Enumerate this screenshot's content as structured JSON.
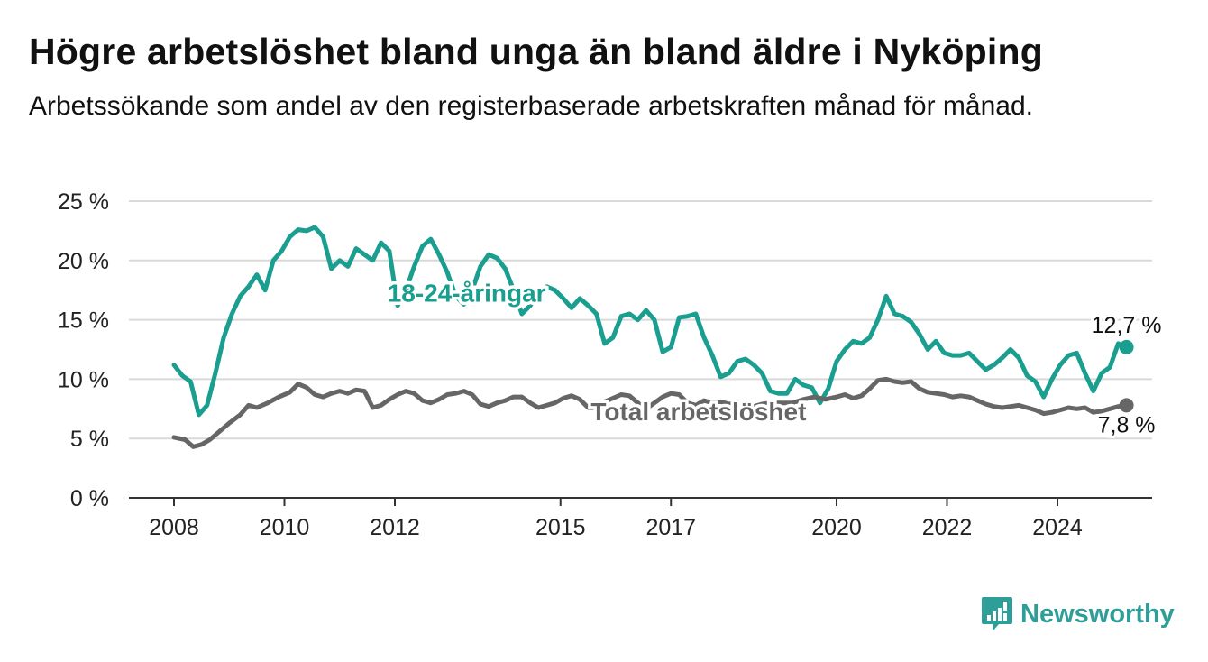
{
  "header": {
    "title": "Högre arbetslöshet bland unga än bland äldre i Nyköping",
    "subtitle": "Arbetssökande som andel av den registerbaserade arbetskraften månad för månad."
  },
  "brand": {
    "name": "Newsworthy",
    "color": "#2f9e98"
  },
  "chart_data": {
    "type": "line",
    "x_unit": "year",
    "xlim": [
      2008,
      2024.75
    ],
    "ylim": [
      0,
      25
    ],
    "y_ticks": [
      0,
      5,
      10,
      15,
      20,
      25
    ],
    "y_tick_labels": [
      "0 %",
      "5 %",
      "10 %",
      "15 %",
      "20 %",
      "25 %"
    ],
    "x_ticks": [
      2008,
      2010,
      2012,
      2015,
      2017,
      2020,
      2022,
      2024
    ],
    "x_tick_labels": [
      "2008",
      "2010",
      "2012",
      "2015",
      "2017",
      "2020",
      "2022",
      "2024"
    ],
    "grid": "horizontal",
    "series": [
      {
        "name": "18-24-åringar",
        "color": "#1a9e8f",
        "end_label": "12,7 %",
        "points": [
          [
            2008.0,
            11.2
          ],
          [
            2008.15,
            10.3
          ],
          [
            2008.3,
            9.8
          ],
          [
            2008.45,
            7.0
          ],
          [
            2008.6,
            7.8
          ],
          [
            2008.75,
            10.5
          ],
          [
            2008.9,
            13.5
          ],
          [
            2009.05,
            15.5
          ],
          [
            2009.2,
            17.0
          ],
          [
            2009.35,
            17.8
          ],
          [
            2009.5,
            18.8
          ],
          [
            2009.65,
            17.5
          ],
          [
            2009.8,
            20.0
          ],
          [
            2009.95,
            20.8
          ],
          [
            2010.1,
            22.0
          ],
          [
            2010.25,
            22.6
          ],
          [
            2010.4,
            22.5
          ],
          [
            2010.55,
            22.8
          ],
          [
            2010.7,
            22.0
          ],
          [
            2010.85,
            19.3
          ],
          [
            2011.0,
            20.0
          ],
          [
            2011.15,
            19.5
          ],
          [
            2011.3,
            21.0
          ],
          [
            2011.45,
            20.5
          ],
          [
            2011.6,
            20.0
          ],
          [
            2011.75,
            21.5
          ],
          [
            2011.9,
            20.8
          ],
          [
            2012.05,
            16.2
          ],
          [
            2012.2,
            17.5
          ],
          [
            2012.35,
            19.5
          ],
          [
            2012.5,
            21.2
          ],
          [
            2012.65,
            21.8
          ],
          [
            2012.8,
            20.5
          ],
          [
            2012.95,
            19.0
          ],
          [
            2013.1,
            17.0
          ],
          [
            2013.25,
            16.3
          ],
          [
            2013.4,
            17.5
          ],
          [
            2013.55,
            19.5
          ],
          [
            2013.7,
            20.5
          ],
          [
            2013.85,
            20.2
          ],
          [
            2014.0,
            19.3
          ],
          [
            2014.15,
            17.5
          ],
          [
            2014.3,
            15.5
          ],
          [
            2014.45,
            16.2
          ],
          [
            2014.6,
            17.2
          ],
          [
            2014.75,
            17.8
          ],
          [
            2014.9,
            17.5
          ],
          [
            2015.05,
            16.8
          ],
          [
            2015.2,
            16.0
          ],
          [
            2015.35,
            16.8
          ],
          [
            2015.5,
            16.2
          ],
          [
            2015.65,
            15.5
          ],
          [
            2015.8,
            13.0
          ],
          [
            2015.95,
            13.5
          ],
          [
            2016.1,
            15.3
          ],
          [
            2016.25,
            15.5
          ],
          [
            2016.4,
            15.0
          ],
          [
            2016.55,
            15.8
          ],
          [
            2016.7,
            15.0
          ],
          [
            2016.85,
            12.3
          ],
          [
            2017.0,
            12.7
          ],
          [
            2017.15,
            15.2
          ],
          [
            2017.3,
            15.3
          ],
          [
            2017.45,
            15.5
          ],
          [
            2017.6,
            13.5
          ],
          [
            2017.75,
            12.0
          ],
          [
            2017.9,
            10.2
          ],
          [
            2018.05,
            10.5
          ],
          [
            2018.2,
            11.5
          ],
          [
            2018.35,
            11.7
          ],
          [
            2018.5,
            11.2
          ],
          [
            2018.65,
            10.5
          ],
          [
            2018.8,
            9.0
          ],
          [
            2018.95,
            8.8
          ],
          [
            2019.1,
            8.8
          ],
          [
            2019.25,
            10.0
          ],
          [
            2019.4,
            9.5
          ],
          [
            2019.55,
            9.3
          ],
          [
            2019.7,
            8.0
          ],
          [
            2019.85,
            9.2
          ],
          [
            2020.0,
            11.5
          ],
          [
            2020.15,
            12.5
          ],
          [
            2020.3,
            13.2
          ],
          [
            2020.45,
            13.0
          ],
          [
            2020.6,
            13.5
          ],
          [
            2020.75,
            15.0
          ],
          [
            2020.9,
            17.0
          ],
          [
            2021.05,
            15.5
          ],
          [
            2021.2,
            15.3
          ],
          [
            2021.35,
            14.8
          ],
          [
            2021.5,
            13.8
          ],
          [
            2021.65,
            12.5
          ],
          [
            2021.8,
            13.2
          ],
          [
            2021.95,
            12.2
          ],
          [
            2022.1,
            12.0
          ],
          [
            2022.25,
            12.0
          ],
          [
            2022.4,
            12.2
          ],
          [
            2022.55,
            11.5
          ],
          [
            2022.7,
            10.8
          ],
          [
            2022.85,
            11.2
          ],
          [
            2023.0,
            11.8
          ],
          [
            2023.15,
            12.5
          ],
          [
            2023.3,
            11.8
          ],
          [
            2023.45,
            10.3
          ],
          [
            2023.6,
            9.8
          ],
          [
            2023.75,
            8.5
          ],
          [
            2023.9,
            10.0
          ],
          [
            2024.05,
            11.2
          ],
          [
            2024.2,
            12.0
          ],
          [
            2024.35,
            12.2
          ],
          [
            2024.5,
            10.5
          ],
          [
            2024.65,
            9.0
          ],
          [
            2024.8,
            10.5
          ],
          [
            2024.95,
            11.0
          ],
          [
            2025.1,
            13.0
          ],
          [
            2025.25,
            12.7
          ]
        ],
        "label_position": [
          2013.3,
          17.3
        ]
      },
      {
        "name": "Total arbetslöshet",
        "color": "#666666",
        "end_label": "7,8 %",
        "points": [
          [
            2008.0,
            5.1
          ],
          [
            2008.2,
            4.9
          ],
          [
            2008.35,
            4.3
          ],
          [
            2008.5,
            4.5
          ],
          [
            2008.65,
            4.9
          ],
          [
            2008.8,
            5.5
          ],
          [
            2009.0,
            6.3
          ],
          [
            2009.2,
            7.0
          ],
          [
            2009.35,
            7.8
          ],
          [
            2009.5,
            7.6
          ],
          [
            2009.7,
            8.0
          ],
          [
            2009.9,
            8.5
          ],
          [
            2010.1,
            8.9
          ],
          [
            2010.25,
            9.6
          ],
          [
            2010.4,
            9.3
          ],
          [
            2010.55,
            8.7
          ],
          [
            2010.7,
            8.5
          ],
          [
            2010.85,
            8.8
          ],
          [
            2011.0,
            9.0
          ],
          [
            2011.15,
            8.8
          ],
          [
            2011.3,
            9.1
          ],
          [
            2011.45,
            9.0
          ],
          [
            2011.6,
            7.6
          ],
          [
            2011.75,
            7.8
          ],
          [
            2011.9,
            8.3
          ],
          [
            2012.05,
            8.7
          ],
          [
            2012.2,
            9.0
          ],
          [
            2012.35,
            8.8
          ],
          [
            2012.5,
            8.2
          ],
          [
            2012.65,
            8.0
          ],
          [
            2012.8,
            8.3
          ],
          [
            2012.95,
            8.7
          ],
          [
            2013.1,
            8.8
          ],
          [
            2013.25,
            9.0
          ],
          [
            2013.4,
            8.7
          ],
          [
            2013.55,
            7.9
          ],
          [
            2013.7,
            7.7
          ],
          [
            2013.85,
            8.0
          ],
          [
            2014.0,
            8.2
          ],
          [
            2014.15,
            8.5
          ],
          [
            2014.3,
            8.5
          ],
          [
            2014.45,
            8.0
          ],
          [
            2014.6,
            7.6
          ],
          [
            2014.75,
            7.8
          ],
          [
            2014.9,
            8.0
          ],
          [
            2015.05,
            8.4
          ],
          [
            2015.2,
            8.6
          ],
          [
            2015.35,
            8.3
          ],
          [
            2015.5,
            7.6
          ],
          [
            2015.65,
            7.6
          ],
          [
            2015.8,
            8.1
          ],
          [
            2015.95,
            8.4
          ],
          [
            2016.1,
            8.7
          ],
          [
            2016.25,
            8.6
          ],
          [
            2016.4,
            8.0
          ],
          [
            2016.55,
            7.5
          ],
          [
            2016.7,
            8.0
          ],
          [
            2016.85,
            8.5
          ],
          [
            2017.0,
            8.8
          ],
          [
            2017.15,
            8.7
          ],
          [
            2017.3,
            8.0
          ],
          [
            2017.45,
            7.8
          ],
          [
            2017.6,
            8.2
          ],
          [
            2017.75,
            8.0
          ],
          [
            2017.9,
            8.1
          ],
          [
            2018.05,
            7.9
          ],
          [
            2018.2,
            8.0
          ],
          [
            2018.35,
            8.0
          ],
          [
            2018.5,
            7.7
          ],
          [
            2018.65,
            7.9
          ],
          [
            2018.8,
            8.0
          ],
          [
            2019.0,
            8.0
          ],
          [
            2019.2,
            8.0
          ],
          [
            2019.4,
            8.3
          ],
          [
            2019.6,
            8.5
          ],
          [
            2019.8,
            8.3
          ],
          [
            2020.0,
            8.5
          ],
          [
            2020.15,
            8.7
          ],
          [
            2020.3,
            8.4
          ],
          [
            2020.45,
            8.6
          ],
          [
            2020.6,
            9.2
          ],
          [
            2020.75,
            9.9
          ],
          [
            2020.9,
            10.0
          ],
          [
            2021.05,
            9.8
          ],
          [
            2021.2,
            9.7
          ],
          [
            2021.35,
            9.8
          ],
          [
            2021.5,
            9.2
          ],
          [
            2021.65,
            8.9
          ],
          [
            2021.8,
            8.8
          ],
          [
            2021.95,
            8.7
          ],
          [
            2022.1,
            8.5
          ],
          [
            2022.25,
            8.6
          ],
          [
            2022.4,
            8.5
          ],
          [
            2022.55,
            8.2
          ],
          [
            2022.7,
            7.9
          ],
          [
            2022.85,
            7.7
          ],
          [
            2023.0,
            7.6
          ],
          [
            2023.15,
            7.7
          ],
          [
            2023.3,
            7.8
          ],
          [
            2023.45,
            7.6
          ],
          [
            2023.6,
            7.4
          ],
          [
            2023.75,
            7.1
          ],
          [
            2023.9,
            7.2
          ],
          [
            2024.05,
            7.4
          ],
          [
            2024.2,
            7.6
          ],
          [
            2024.35,
            7.5
          ],
          [
            2024.5,
            7.6
          ],
          [
            2024.65,
            7.2
          ],
          [
            2024.8,
            7.3
          ],
          [
            2024.95,
            7.5
          ],
          [
            2025.1,
            7.7
          ],
          [
            2025.25,
            7.8
          ]
        ],
        "label_position": [
          2017.5,
          7.3
        ]
      }
    ]
  }
}
